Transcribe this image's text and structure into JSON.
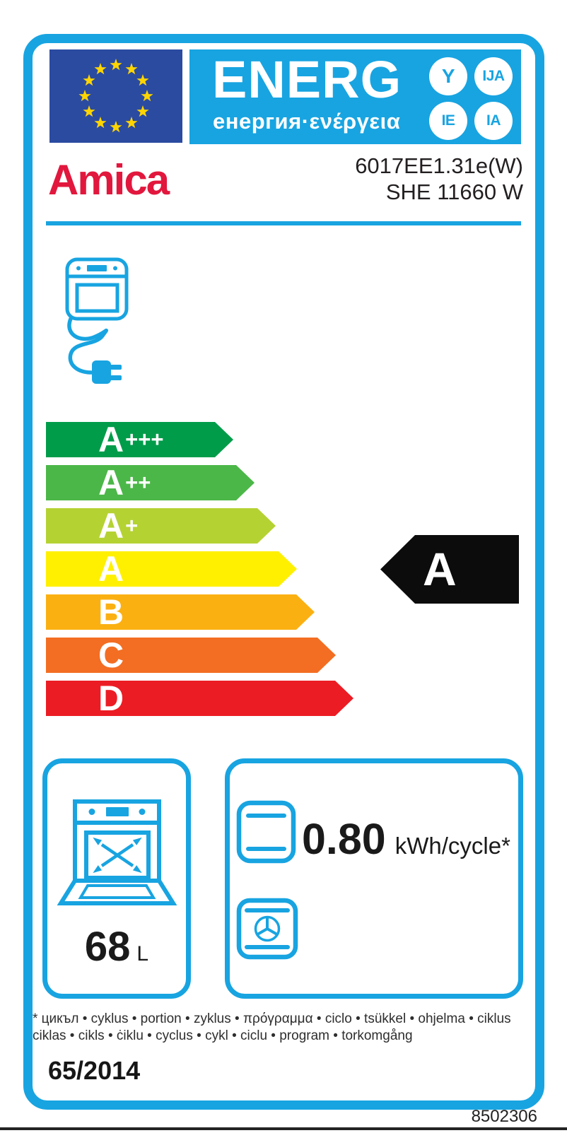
{
  "label": {
    "brand": "Amica",
    "model_line1": "6017EE1.31e(W)",
    "model_line2": "SHE 11660 W"
  },
  "logo": {
    "title": "ENERG",
    "subtitle": "енергия·ενέργεια",
    "suffix_circles": [
      "Y",
      "IJA",
      "IE",
      "IA"
    ]
  },
  "rating_scale": {
    "classes": [
      {
        "label": "A",
        "suffix": "+++",
        "color": "#009c4a"
      },
      {
        "label": "A",
        "suffix": "++",
        "color": "#4bb748"
      },
      {
        "label": "A",
        "suffix": "+",
        "color": "#b5d233"
      },
      {
        "label": "A",
        "suffix": "",
        "color": "#fff000"
      },
      {
        "label": "B",
        "suffix": "",
        "color": "#fbb012"
      },
      {
        "label": "C",
        "suffix": "",
        "color": "#f36e22"
      },
      {
        "label": "D",
        "suffix": "",
        "color": "#ec1c24"
      }
    ],
    "selected_class": "A"
  },
  "metrics": {
    "volume_value": "68",
    "volume_unit": "L",
    "energy_value": "0.80",
    "energy_unit": "kWh/cycle*"
  },
  "footnote_line1": "* цикъл • cyklus • portion • zyklus • πρόγραμμα • ciclo • tsükkel • ohjelma • ciklus",
  "footnote_line2": "ciklas • cikls • ċiklu • cyclus • cykl • ciclu • program • torkomgång",
  "regulation": "65/2014",
  "document_number": "8502306",
  "colors": {
    "accent_cyan": "#18a4e1",
    "eu_blue": "#2b4ba1",
    "star_yellow": "#ffd500",
    "brand_red": "#e2173d",
    "selected_arrow_black": "#0c0c0c"
  }
}
